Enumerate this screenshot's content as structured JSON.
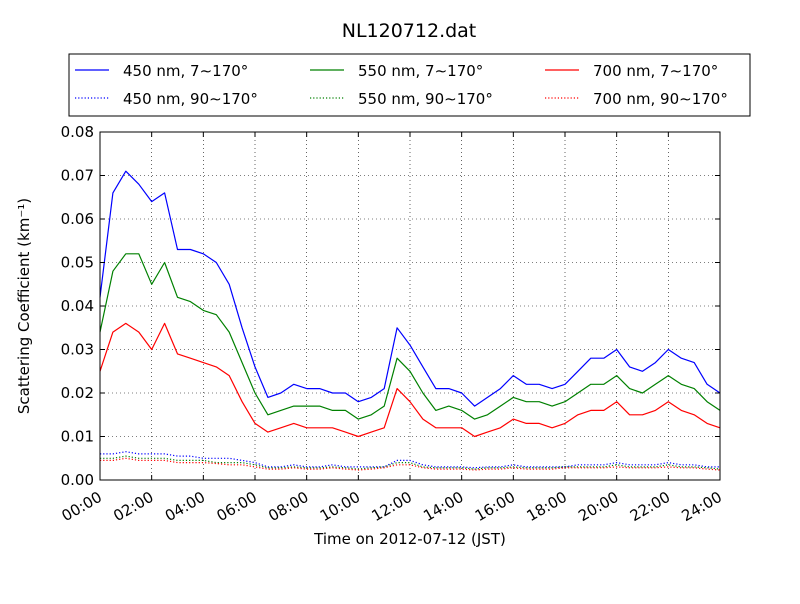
{
  "chart_data": {
    "type": "line",
    "title": "NL120712.dat",
    "xlabel": "Time on 2012-07-12 (JST)",
    "ylabel": "Scattering Coefficient (km⁻¹)",
    "xlim": [
      0,
      24
    ],
    "ylim": [
      0,
      0.08
    ],
    "x_unit": "hours",
    "grid": true,
    "legend_position": "top",
    "x_ticks": [
      "00:00",
      "02:00",
      "04:00",
      "06:00",
      "08:00",
      "10:00",
      "12:00",
      "14:00",
      "16:00",
      "18:00",
      "20:00",
      "22:00",
      "24:00"
    ],
    "y_ticks": [
      "0.00",
      "0.01",
      "0.02",
      "0.03",
      "0.04",
      "0.05",
      "0.06",
      "0.07",
      "0.08"
    ],
    "x": [
      0,
      0.5,
      1,
      1.5,
      2,
      2.5,
      3,
      3.5,
      4,
      4.5,
      5,
      5.5,
      6,
      6.5,
      7,
      7.5,
      8,
      8.5,
      9,
      9.5,
      10,
      10.5,
      11,
      11.5,
      12,
      12.5,
      13,
      13.5,
      14,
      14.5,
      15,
      15.5,
      16,
      16.5,
      17,
      17.5,
      18,
      18.5,
      19,
      19.5,
      20,
      20.5,
      21,
      21.5,
      22,
      22.5,
      23,
      23.5,
      24
    ],
    "series": [
      {
        "name": "450 nm, 7∼170°",
        "color": "#0000ff",
        "style": "solid",
        "values": [
          0.042,
          0.066,
          0.071,
          0.068,
          0.064,
          0.066,
          0.053,
          0.053,
          0.052,
          0.05,
          0.045,
          0.035,
          0.026,
          0.019,
          0.02,
          0.022,
          0.021,
          0.021,
          0.02,
          0.02,
          0.018,
          0.019,
          0.021,
          0.035,
          0.031,
          0.026,
          0.021,
          0.021,
          0.02,
          0.017,
          0.019,
          0.021,
          0.024,
          0.022,
          0.022,
          0.021,
          0.022,
          0.025,
          0.028,
          0.028,
          0.03,
          0.026,
          0.025,
          0.027,
          0.03,
          0.028,
          0.027,
          0.022,
          0.02
        ]
      },
      {
        "name": "450 nm, 90∼170°",
        "color": "#0000ff",
        "style": "dotted",
        "values": [
          0.006,
          0.006,
          0.0065,
          0.006,
          0.006,
          0.006,
          0.0055,
          0.0055,
          0.005,
          0.005,
          0.005,
          0.0045,
          0.004,
          0.003,
          0.003,
          0.0035,
          0.003,
          0.003,
          0.0035,
          0.003,
          0.003,
          0.003,
          0.003,
          0.0045,
          0.0045,
          0.0035,
          0.003,
          0.003,
          0.003,
          0.0028,
          0.003,
          0.003,
          0.0035,
          0.003,
          0.003,
          0.003,
          0.003,
          0.0035,
          0.0035,
          0.0035,
          0.004,
          0.0035,
          0.0035,
          0.0035,
          0.004,
          0.0035,
          0.0035,
          0.003,
          0.003
        ]
      },
      {
        "name": "550 nm, 7∼170°",
        "color": "#008000",
        "style": "solid",
        "values": [
          0.034,
          0.048,
          0.052,
          0.052,
          0.045,
          0.05,
          0.042,
          0.041,
          0.039,
          0.038,
          0.034,
          0.027,
          0.02,
          0.015,
          0.016,
          0.017,
          0.017,
          0.017,
          0.016,
          0.016,
          0.014,
          0.015,
          0.017,
          0.028,
          0.025,
          0.02,
          0.016,
          0.017,
          0.016,
          0.014,
          0.015,
          0.017,
          0.019,
          0.018,
          0.018,
          0.017,
          0.018,
          0.02,
          0.022,
          0.022,
          0.024,
          0.021,
          0.02,
          0.022,
          0.024,
          0.022,
          0.021,
          0.018,
          0.016
        ]
      },
      {
        "name": "550 nm, 90∼170°",
        "color": "#008000",
        "style": "dotted",
        "values": [
          0.005,
          0.005,
          0.0055,
          0.005,
          0.005,
          0.005,
          0.0045,
          0.0045,
          0.0045,
          0.004,
          0.004,
          0.004,
          0.0035,
          0.0028,
          0.0028,
          0.003,
          0.0028,
          0.0028,
          0.003,
          0.0028,
          0.0025,
          0.0028,
          0.003,
          0.004,
          0.004,
          0.003,
          0.0028,
          0.0028,
          0.0028,
          0.0025,
          0.0028,
          0.0028,
          0.003,
          0.0028,
          0.0028,
          0.0028,
          0.003,
          0.003,
          0.003,
          0.003,
          0.0035,
          0.003,
          0.003,
          0.003,
          0.0035,
          0.003,
          0.003,
          0.0028,
          0.0025
        ]
      },
      {
        "name": "700 nm, 7∼170°",
        "color": "#ff0000",
        "style": "solid",
        "values": [
          0.025,
          0.034,
          0.036,
          0.034,
          0.03,
          0.036,
          0.029,
          0.028,
          0.027,
          0.026,
          0.024,
          0.018,
          0.013,
          0.011,
          0.012,
          0.013,
          0.012,
          0.012,
          0.012,
          0.011,
          0.01,
          0.011,
          0.012,
          0.021,
          0.018,
          0.014,
          0.012,
          0.012,
          0.012,
          0.01,
          0.011,
          0.012,
          0.014,
          0.013,
          0.013,
          0.012,
          0.013,
          0.015,
          0.016,
          0.016,
          0.018,
          0.015,
          0.015,
          0.016,
          0.018,
          0.016,
          0.015,
          0.013,
          0.012
        ]
      },
      {
        "name": "700 nm, 90∼170°",
        "color": "#ff0000",
        "style": "dotted",
        "values": [
          0.0045,
          0.0045,
          0.005,
          0.0045,
          0.0045,
          0.0045,
          0.004,
          0.004,
          0.004,
          0.0038,
          0.0035,
          0.0035,
          0.003,
          0.0025,
          0.0025,
          0.0028,
          0.0025,
          0.0025,
          0.0028,
          0.0025,
          0.0023,
          0.0025,
          0.0028,
          0.0035,
          0.0035,
          0.0028,
          0.0025,
          0.0025,
          0.0025,
          0.0023,
          0.0025,
          0.0025,
          0.0028,
          0.0025,
          0.0025,
          0.0025,
          0.0028,
          0.0028,
          0.0028,
          0.0028,
          0.003,
          0.0028,
          0.0028,
          0.0028,
          0.003,
          0.0028,
          0.0028,
          0.0025,
          0.0023
        ]
      }
    ]
  }
}
